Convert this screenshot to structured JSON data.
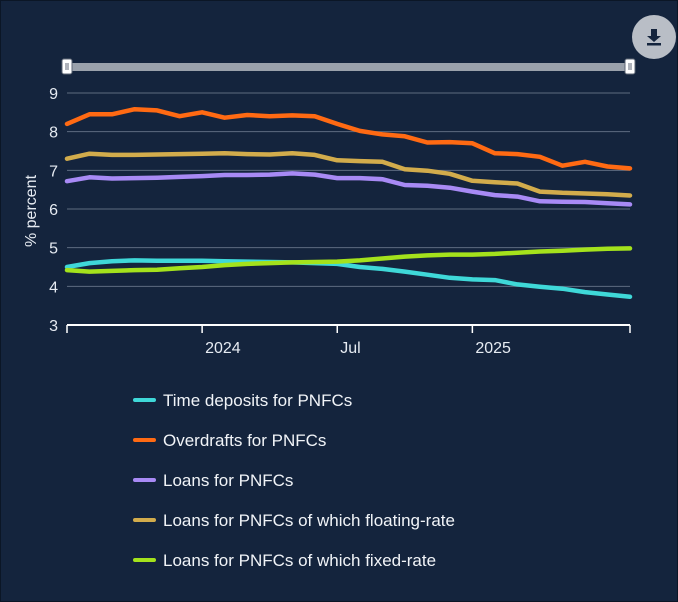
{
  "chart_data": {
    "type": "line",
    "title": "",
    "xlabel": "",
    "ylabel": "% percent",
    "ylim": [
      3,
      9
    ],
    "yticks": [
      3,
      4,
      5,
      6,
      7,
      8,
      9
    ],
    "x": [
      "2023-07",
      "2023-08",
      "2023-09",
      "2023-10",
      "2023-11",
      "2023-12",
      "2024-01",
      "2024-02",
      "2024-03",
      "2024-04",
      "2024-05",
      "2024-06",
      "2024-07",
      "2024-08",
      "2024-09",
      "2024-10",
      "2024-11",
      "2024-12",
      "2025-01",
      "2025-02",
      "2025-03",
      "2025-04",
      "2025-05",
      "2025-06",
      "2025-07",
      "2025-08"
    ],
    "xticks": [
      {
        "label": "2024",
        "at": "2024-01"
      },
      {
        "label": "Jul",
        "at": "2024-07"
      },
      {
        "label": "2025",
        "at": "2025-01"
      }
    ],
    "grid": true,
    "legend_position": "bottom",
    "series": [
      {
        "name": "Time deposits for PNFCs",
        "color": "#3fd8d8",
        "values": [
          4.5,
          4.6,
          4.65,
          4.67,
          4.66,
          4.66,
          4.66,
          4.65,
          4.64,
          4.63,
          4.62,
          4.6,
          4.58,
          4.5,
          4.45,
          4.38,
          4.3,
          4.22,
          4.18,
          4.16,
          4.05,
          3.99,
          3.94,
          3.85,
          3.79,
          3.73
        ]
      },
      {
        "name": "Overdrafts for PNFCs",
        "color": "#ff6a13",
        "values": [
          8.2,
          8.45,
          8.45,
          8.58,
          8.55,
          8.4,
          8.5,
          8.36,
          8.43,
          8.4,
          8.42,
          8.4,
          8.2,
          8.02,
          7.93,
          7.88,
          7.72,
          7.73,
          7.7,
          7.44,
          7.42,
          7.35,
          7.12,
          7.22,
          7.1,
          7.05
        ]
      },
      {
        "name": "Loans for PNFCs",
        "color": "#a88af5",
        "values": [
          6.72,
          6.82,
          6.79,
          6.8,
          6.81,
          6.83,
          6.85,
          6.88,
          6.88,
          6.89,
          6.92,
          6.89,
          6.8,
          6.8,
          6.77,
          6.62,
          6.6,
          6.55,
          6.45,
          6.36,
          6.32,
          6.2,
          6.19,
          6.18,
          6.15,
          6.12
        ]
      },
      {
        "name": "Loans for PNFCs of which floating-rate",
        "color": "#d2ac4c",
        "values": [
          7.3,
          7.43,
          7.4,
          7.4,
          7.41,
          7.42,
          7.43,
          7.44,
          7.42,
          7.41,
          7.44,
          7.4,
          7.26,
          7.24,
          7.22,
          7.03,
          6.99,
          6.91,
          6.73,
          6.69,
          6.66,
          6.45,
          6.42,
          6.4,
          6.38,
          6.35
        ]
      },
      {
        "name": "Loans for PNFCs of which fixed-rate",
        "color": "#a4e21c",
        "values": [
          4.42,
          4.38,
          4.4,
          4.42,
          4.43,
          4.47,
          4.5,
          4.55,
          4.58,
          4.6,
          4.62,
          4.63,
          4.64,
          4.67,
          4.72,
          4.77,
          4.8,
          4.82,
          4.82,
          4.84,
          4.87,
          4.9,
          4.92,
          4.95,
          4.97,
          4.98
        ]
      }
    ]
  },
  "navigator": {
    "label": "range-navigator"
  },
  "toolbar": {
    "download_icon": "download-icon"
  }
}
